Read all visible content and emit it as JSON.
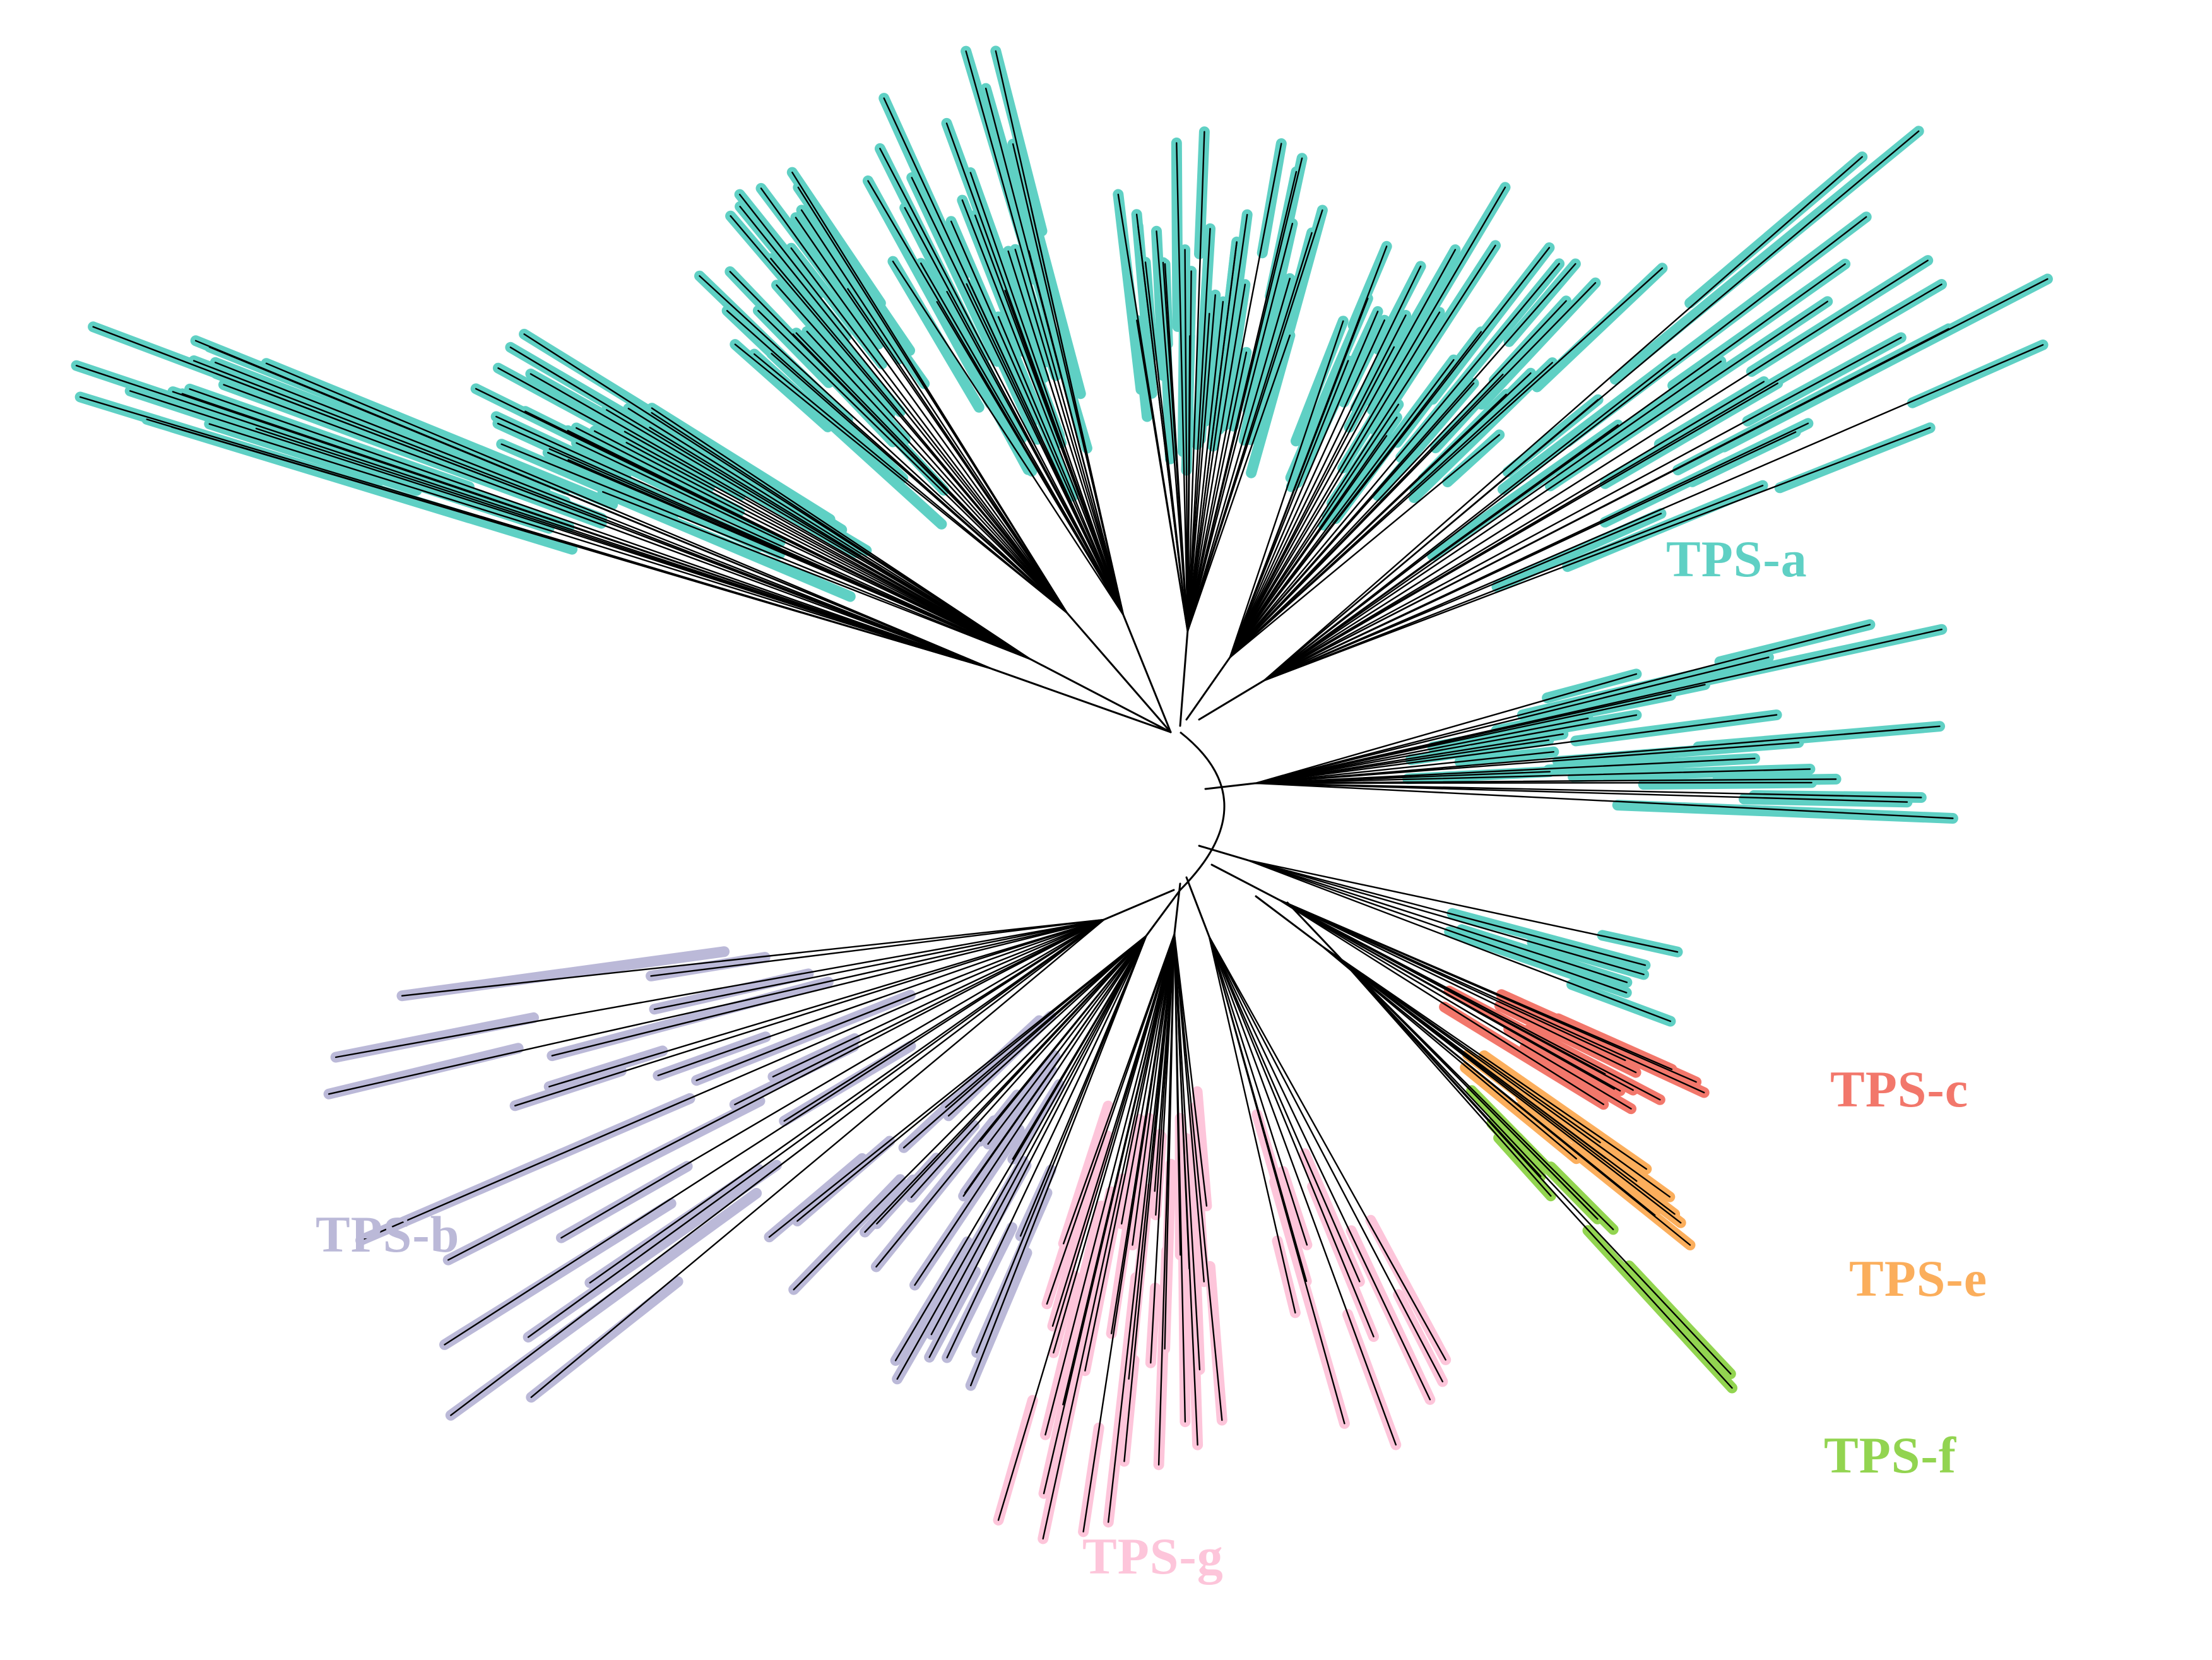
{
  "clades": [
    {
      "id": "a",
      "label": "TPS-a",
      "color": "#5fd0c4",
      "leaves": 150
    },
    {
      "id": "b",
      "label": "TPS-b",
      "color": "#bbb9d8",
      "leaves": 45
    },
    {
      "id": "c",
      "label": "TPS-c",
      "color": "#f2776b",
      "leaves": 12
    },
    {
      "id": "e",
      "label": "TPS-e",
      "color": "#fbae5c",
      "leaves": 10
    },
    {
      "id": "f",
      "label": "TPS-f",
      "color": "#92d450",
      "leaves": 7
    },
    {
      "id": "g",
      "label": "TPS-g",
      "color": "#fdc5da",
      "leaves": 40
    }
  ],
  "branch_color": "#000000"
}
